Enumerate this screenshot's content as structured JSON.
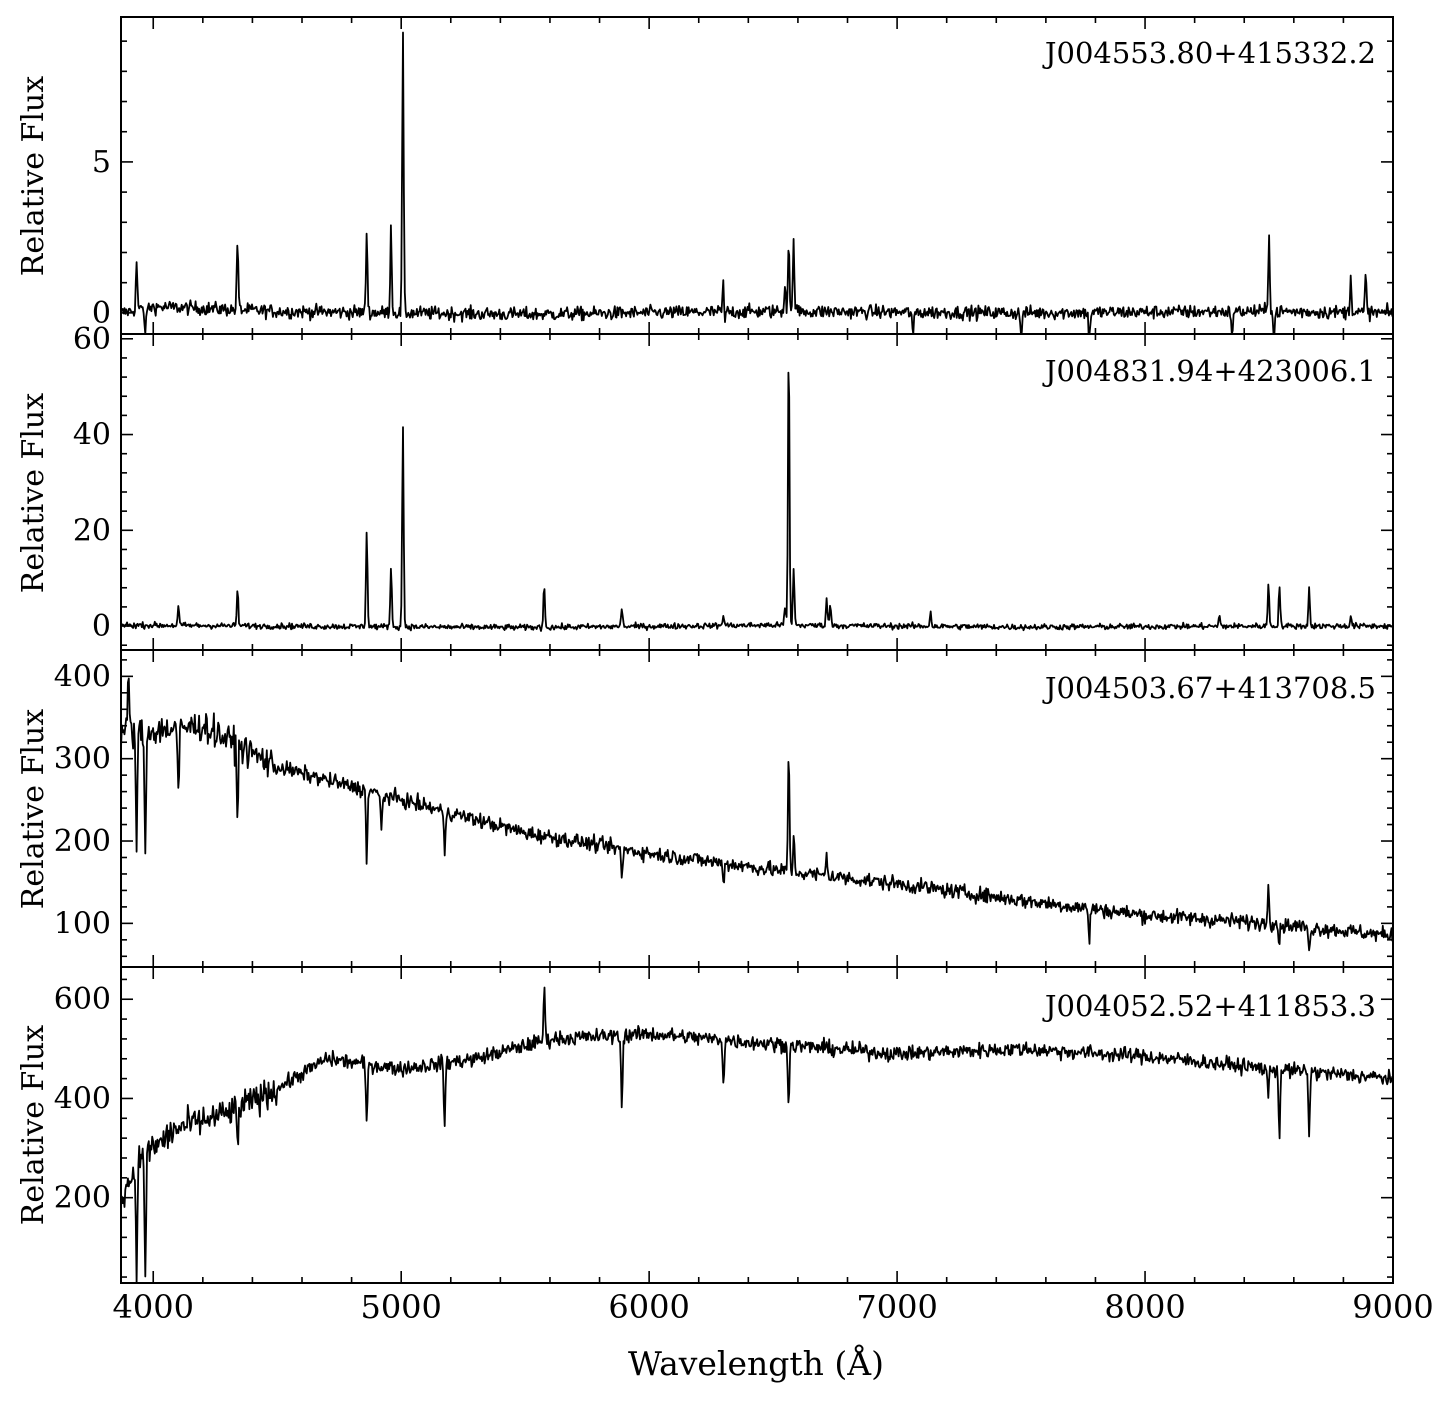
{
  "chart_data": {
    "type": "line",
    "xlabel": "Wavelength (Å)",
    "xlim": [
      3870,
      9000
    ],
    "x_ticks": [
      4000,
      5000,
      6000,
      7000,
      8000,
      9000
    ],
    "grid": false,
    "line_color": "#000000",
    "panels": [
      {
        "title": "J004553.80+415332.2",
        "ylabel": "Relative Flux",
        "ylim": [
          -0.7,
          9.8
        ],
        "y_ticks": [
          0,
          5
        ],
        "noise": 0.22,
        "continuum": [
          [
            3870,
            0.0
          ],
          [
            4000,
            0.2
          ],
          [
            4200,
            0.15
          ],
          [
            4500,
            0.05
          ],
          [
            5500,
            -0.05
          ],
          [
            6500,
            0.05
          ],
          [
            7500,
            0.0
          ],
          [
            8500,
            0.05
          ],
          [
            9000,
            0.0
          ]
        ],
        "lines": [
          {
            "x": 3933,
            "y": 1.7
          },
          {
            "x": 3968,
            "y": -0.9
          },
          {
            "x": 4340,
            "y": 2.4
          },
          {
            "x": 4861,
            "y": 2.7
          },
          {
            "x": 4959,
            "y": 2.8
          },
          {
            "x": 5007,
            "y": 9.3
          },
          {
            "x": 6300,
            "y": 1.85
          },
          {
            "x": 6302,
            "y": -1.2
          },
          {
            "x": 6548,
            "y": 1.0
          },
          {
            "x": 6563,
            "y": 2.45
          },
          {
            "x": 6583,
            "y": 2.4
          },
          {
            "x": 7065,
            "y": -0.9
          },
          {
            "x": 7500,
            "y": -0.8
          },
          {
            "x": 7775,
            "y": -1.2
          },
          {
            "x": 8350,
            "y": -0.9
          },
          {
            "x": 8500,
            "y": 2.7
          },
          {
            "x": 8520,
            "y": -1.0
          },
          {
            "x": 8830,
            "y": 1.25
          },
          {
            "x": 8890,
            "y": 1.25
          }
        ]
      },
      {
        "title": "J004831.94+423006.1",
        "ylabel": "Relative Flux",
        "ylim": [
          -5,
          61
        ],
        "y_ticks": [
          0,
          20,
          40,
          60
        ],
        "noise": 0.6,
        "continuum": [
          [
            3870,
            0.2
          ],
          [
            4500,
            0.0
          ],
          [
            5500,
            -0.3
          ],
          [
            6500,
            0.2
          ],
          [
            7500,
            -0.2
          ],
          [
            8500,
            0.0
          ],
          [
            9000,
            0.0
          ]
        ],
        "lines": [
          {
            "x": 4102,
            "y": 4.0
          },
          {
            "x": 4340,
            "y": 7.5
          },
          {
            "x": 4861,
            "y": 20.3
          },
          {
            "x": 4959,
            "y": 12.5
          },
          {
            "x": 5007,
            "y": 42.0
          },
          {
            "x": 5577,
            "y": 13.0
          },
          {
            "x": 5578,
            "y": -4.5
          },
          {
            "x": 5890,
            "y": 4.0
          },
          {
            "x": 6300,
            "y": 2.5
          },
          {
            "x": 6548,
            "y": 4.0
          },
          {
            "x": 6563,
            "y": 59.5
          },
          {
            "x": 6583,
            "y": 12.5
          },
          {
            "x": 6716,
            "y": 6.0
          },
          {
            "x": 6731,
            "y": 4.5
          },
          {
            "x": 7135,
            "y": 3.0
          },
          {
            "x": 8300,
            "y": 2.0
          },
          {
            "x": 8498,
            "y": 9.0
          },
          {
            "x": 8542,
            "y": 8.5
          },
          {
            "x": 8662,
            "y": 8.0
          },
          {
            "x": 8830,
            "y": 2.2
          }
        ]
      },
      {
        "title": "J004503.67+413708.5",
        "ylabel": "Relative Flux",
        "ylim": [
          47,
          432
        ],
        "y_ticks": [
          100,
          200,
          300,
          400
        ],
        "noise": 9,
        "continuum": [
          [
            3870,
            330
          ],
          [
            4200,
            340
          ],
          [
            4500,
            290
          ],
          [
            5000,
            250
          ],
          [
            5500,
            210
          ],
          [
            6000,
            185
          ],
          [
            6500,
            165
          ],
          [
            7000,
            148
          ],
          [
            7500,
            128
          ],
          [
            8000,
            110
          ],
          [
            8500,
            100
          ],
          [
            9000,
            85
          ]
        ],
        "lines": [
          {
            "x": 3900,
            "y": 410
          },
          {
            "x": 3933,
            "y": 190
          },
          {
            "x": 3968,
            "y": 175
          },
          {
            "x": 4102,
            "y": 250
          },
          {
            "x": 4340,
            "y": 235
          },
          {
            "x": 4861,
            "y": 180
          },
          {
            "x": 4920,
            "y": 210
          },
          {
            "x": 5175,
            "y": 185
          },
          {
            "x": 5890,
            "y": 150
          },
          {
            "x": 6300,
            "y": 150
          },
          {
            "x": 6563,
            "y": 310
          },
          {
            "x": 6583,
            "y": 205
          },
          {
            "x": 6716,
            "y": 185
          },
          {
            "x": 7775,
            "y": 80
          },
          {
            "x": 8498,
            "y": 155
          },
          {
            "x": 8542,
            "y": 75
          },
          {
            "x": 8662,
            "y": 60
          }
        ]
      },
      {
        "title": "J004052.52+411853.3",
        "ylabel": "Relative Flux",
        "ylim": [
          28,
          665
        ],
        "y_ticks": [
          200,
          400,
          600
        ],
        "noise": 15,
        "continuum": [
          [
            3870,
            200
          ],
          [
            3950,
            280
          ],
          [
            4100,
            340
          ],
          [
            4300,
            370
          ],
          [
            4500,
            420
          ],
          [
            4700,
            480
          ],
          [
            5000,
            460
          ],
          [
            5300,
            480
          ],
          [
            5600,
            520
          ],
          [
            6000,
            530
          ],
          [
            6500,
            510
          ],
          [
            7000,
            490
          ],
          [
            7500,
            500
          ],
          [
            8000,
            485
          ],
          [
            8500,
            460
          ],
          [
            9000,
            440
          ]
        ],
        "lines": [
          {
            "x": 3933,
            "y": 60
          },
          {
            "x": 3968,
            "y": 55
          },
          {
            "x": 4340,
            "y": 300
          },
          {
            "x": 4861,
            "y": 340
          },
          {
            "x": 5175,
            "y": 345
          },
          {
            "x": 5577,
            "y": 620
          },
          {
            "x": 5890,
            "y": 375
          },
          {
            "x": 6300,
            "y": 430
          },
          {
            "x": 6563,
            "y": 385
          },
          {
            "x": 8498,
            "y": 400
          },
          {
            "x": 8542,
            "y": 320
          },
          {
            "x": 8662,
            "y": 325
          }
        ]
      }
    ]
  }
}
